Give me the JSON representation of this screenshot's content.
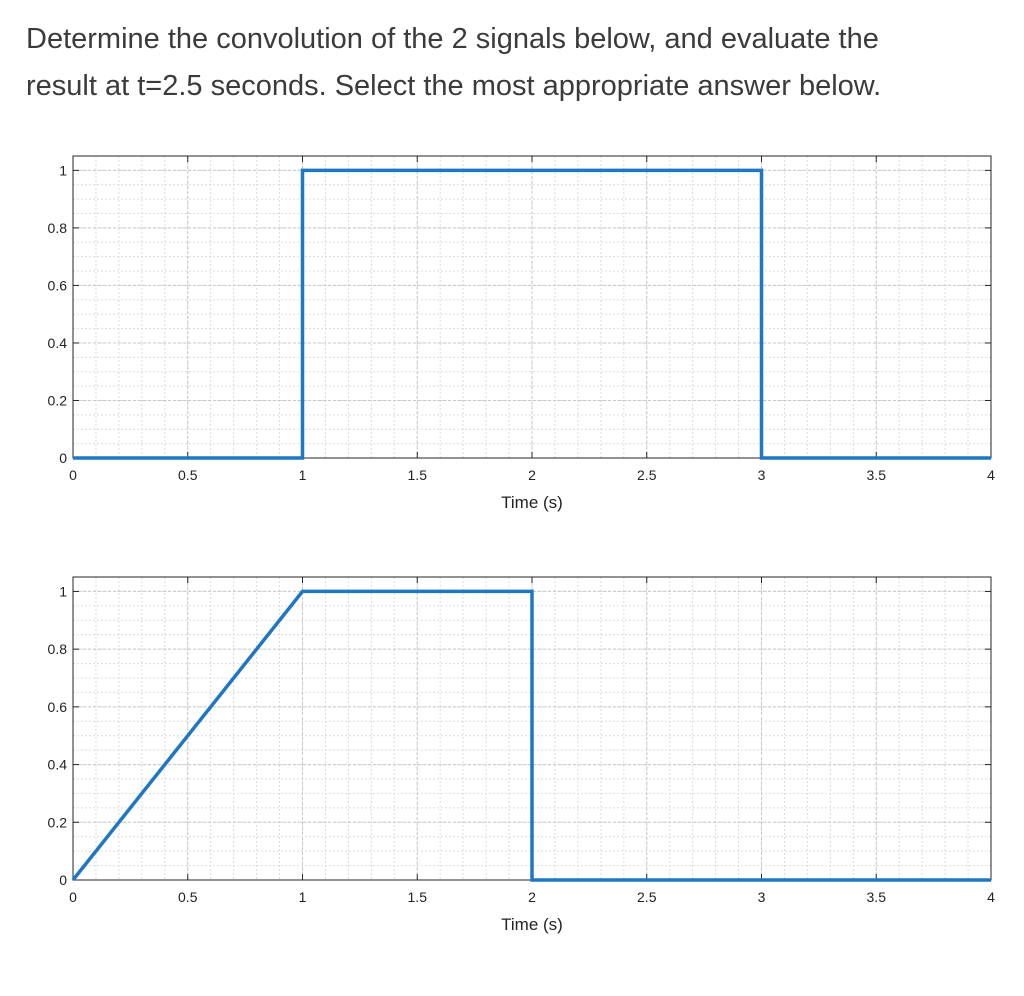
{
  "question": {
    "line1": "Determine the convolution of the 2 signals below, and evaluate the",
    "line2": "result at t=2.5 seconds. Select the most appropriate answer below."
  },
  "chart_data": [
    {
      "type": "line",
      "xlabel": "Time (s)",
      "ylabel": "",
      "xlim": [
        0,
        4
      ],
      "ylim": [
        0,
        1.05
      ],
      "xticks": [
        0,
        0.5,
        1,
        1.5,
        2,
        2.5,
        3,
        3.5,
        4
      ],
      "xtick_labels": [
        "0",
        "0.5",
        "1",
        "1.5",
        "2",
        "2.5",
        "3",
        "3.5",
        "4"
      ],
      "yticks": [
        0,
        0.2,
        0.4,
        0.6,
        0.8,
        1
      ],
      "ytick_labels": [
        "0",
        "0.2",
        "0.4",
        "0.6",
        "0.8",
        "1"
      ],
      "grid": true,
      "line_color": "#1f77c4",
      "series": [
        {
          "x": [
            0,
            1,
            1,
            3,
            3,
            4
          ],
          "y": [
            0,
            0,
            1,
            1,
            0,
            0
          ]
        }
      ]
    },
    {
      "type": "line",
      "xlabel": "Time (s)",
      "ylabel": "",
      "xlim": [
        0,
        4
      ],
      "ylim": [
        0,
        1.05
      ],
      "xticks": [
        0,
        0.5,
        1,
        1.5,
        2,
        2.5,
        3,
        3.5,
        4
      ],
      "xtick_labels": [
        "0",
        "0.5",
        "1",
        "1.5",
        "2",
        "2.5",
        "3",
        "3.5",
        "4"
      ],
      "yticks": [
        0,
        0.2,
        0.4,
        0.6,
        0.8,
        1
      ],
      "ytick_labels": [
        "0",
        "0.2",
        "0.4",
        "0.6",
        "0.8",
        "1"
      ],
      "grid": true,
      "line_color": "#1f77c4",
      "series": [
        {
          "x": [
            0,
            1,
            2,
            2,
            4
          ],
          "y": [
            0,
            1,
            1,
            0,
            0
          ]
        }
      ]
    }
  ]
}
